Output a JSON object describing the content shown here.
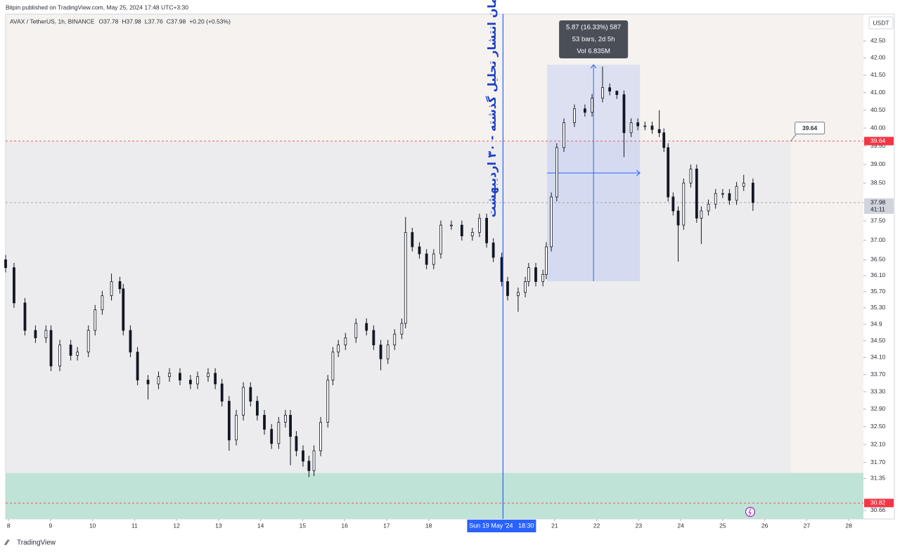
{
  "header": {
    "publisher": "Bitpin published on TradingView.com, May 25, 2024 17:48 UTC+3:30",
    "symbol": "AVAX / TetherUS, 1h, BINANCE",
    "ohlc": [
      "O37.78",
      "H37.98",
      "L37.76",
      "C37.98"
    ],
    "change": "+0.20 (+0.53%)",
    "logo": "TradingView"
  },
  "chart_data": {
    "type": "candlestick",
    "currency": "USDT",
    "annotation": "زمان انتشار تحلیل گذشته - ۳۰ اردیبهشت",
    "log_scale": true,
    "grid": false,
    "up_color": "#ffffff",
    "down_color": "#131722",
    "wick_color": "#131722",
    "x": [
      7.93,
      8.13,
      8.39,
      8.64,
      8.89,
      9.01,
      9.22,
      9.48,
      9.64,
      9.9,
      10.06,
      10.23,
      10.45,
      10.65,
      10.73,
      10.9,
      11.07,
      11.32,
      11.57,
      11.83,
      12.08,
      12.33,
      12.5,
      12.75,
      12.92,
      13.08,
      13.25,
      13.42,
      13.59,
      13.76,
      13.92,
      14.09,
      14.26,
      14.43,
      14.59,
      14.71,
      14.85,
      15.01,
      15.15,
      15.27,
      15.43,
      15.6,
      15.72,
      15.85,
      16.02,
      16.27,
      16.52,
      16.69,
      16.86,
      17.03,
      17.19,
      17.36,
      17.45,
      17.61,
      17.78,
      17.95,
      18.12,
      18.29,
      18.54,
      18.79,
      19.04,
      19.21,
      19.38,
      19.54,
      19.74,
      19.88,
      20.13,
      20.3,
      20.38,
      20.55,
      20.72,
      20.8,
      20.92,
      21.05,
      21.22,
      21.47,
      21.72,
      21.89,
      22.14,
      22.31,
      22.48,
      22.65,
      22.82,
      22.98,
      23.15,
      23.32,
      23.49,
      23.6,
      23.7,
      23.82,
      23.94,
      24.07,
      24.24,
      24.38,
      24.49,
      24.66,
      24.83,
      25.0,
      25.16,
      25.33,
      25.5,
      25.72
    ],
    "open": [
      36.5,
      36.3,
      35.42,
      34.75,
      34.57,
      34.75,
      33.9,
      34.4,
      34.15,
      34.23,
      34.75,
      35.25,
      35.6,
      35.95,
      35.77,
      34.75,
      34.23,
      33.57,
      33.48,
      33.65,
      33.73,
      33.57,
      33.48,
      33.65,
      33.73,
      33.48,
      33.08,
      32.2,
      32.76,
      33.4,
      33.08,
      32.76,
      32.44,
      32.12,
      32.6,
      32.76,
      32.28,
      31.96,
      31.73,
      31.52,
      31.96,
      32.6,
      33.57,
      34.23,
      34.4,
      34.57,
      34.92,
      34.75,
      34.4,
      34.07,
      34.4,
      34.66,
      34.92,
      37.2,
      36.83,
      36.65,
      36.38,
      36.65,
      37.39,
      37.39,
      37.11,
      37.2,
      37.57,
      36.93,
      36.56,
      35.95,
      35.6,
      35.68,
      35.95,
      36.3,
      35.95,
      36.13,
      36.83,
      38.13,
      39.46,
      40.15,
      40.54,
      40.44,
      40.84,
      41.14,
      41.04,
      40.94,
      39.87,
      40.15,
      40.06,
      40.06,
      39.96,
      39.87,
      39.46,
      38.13,
      37.76,
      37.39,
      38.5,
      38.88,
      37.57,
      37.76,
      37.94,
      38.22,
      38.22,
      38.04,
      38.41,
      38.5
    ],
    "high": [
      36.62,
      36.42,
      35.54,
      34.87,
      34.87,
      34.87,
      34.52,
      34.52,
      34.35,
      34.87,
      35.37,
      35.72,
      36.15,
      36.07,
      35.89,
      34.87,
      34.35,
      33.69,
      33.77,
      33.85,
      33.85,
      33.69,
      33.77,
      33.85,
      33.85,
      33.6,
      33.2,
      32.88,
      33.52,
      33.52,
      33.2,
      32.88,
      32.56,
      32.72,
      32.88,
      32.88,
      32.4,
      32.08,
      31.85,
      32.08,
      32.72,
      33.69,
      34.35,
      34.52,
      34.69,
      35.04,
      35.04,
      34.87,
      34.52,
      34.52,
      34.78,
      35.04,
      37.6,
      37.32,
      36.95,
      36.77,
      36.77,
      37.51,
      37.51,
      37.51,
      37.32,
      37.69,
      37.69,
      37.05,
      36.68,
      36.07,
      35.8,
      36.07,
      36.42,
      36.42,
      36.25,
      36.95,
      38.25,
      39.58,
      40.27,
      40.66,
      40.66,
      40.96,
      41.75,
      41.26,
      41.06,
      41.06,
      40.27,
      40.27,
      40.18,
      40.18,
      40.5,
      39.99,
      39.58,
      38.25,
      37.88,
      38.62,
      39.0,
      39.0,
      37.88,
      38.06,
      38.34,
      38.34,
      38.34,
      38.53,
      38.72,
      38.62
    ],
    "low": [
      36.18,
      35.3,
      34.63,
      34.45,
      34.45,
      33.78,
      33.78,
      34.03,
      34.03,
      34.11,
      34.63,
      35.13,
      35.48,
      35.65,
      34.63,
      34.11,
      33.45,
      33.12,
      33.36,
      33.53,
      33.45,
      33.36,
      33.36,
      33.53,
      33.36,
      32.96,
      31.96,
      32.08,
      32.64,
      32.96,
      32.64,
      32.32,
      32.0,
      32.0,
      32.48,
      31.64,
      31.84,
      31.61,
      31.38,
      31.4,
      31.84,
      32.48,
      33.45,
      34.11,
      34.28,
      34.45,
      34.63,
      34.28,
      33.8,
      33.95,
      34.28,
      34.54,
      34.8,
      36.71,
      36.53,
      36.26,
      36.26,
      36.53,
      37.27,
      36.99,
      36.99,
      37.08,
      36.81,
      36.44,
      35.83,
      35.48,
      35.2,
      35.56,
      35.83,
      35.83,
      35.83,
      36.01,
      36.71,
      38.01,
      39.34,
      40.03,
      40.32,
      40.32,
      40.72,
      40.92,
      40.82,
      39.2,
      39.75,
      39.94,
      39.94,
      39.84,
      39.75,
      39.34,
      38.01,
      37.64,
      36.45,
      37.27,
      38.38,
      37.45,
      36.9,
      37.64,
      37.82,
      38.1,
      37.92,
      37.92,
      38.29,
      37.76
    ],
    "close": [
      36.3,
      35.42,
      34.75,
      34.57,
      34.75,
      33.9,
      34.4,
      34.15,
      34.23,
      34.75,
      35.25,
      35.6,
      35.95,
      35.77,
      34.75,
      34.23,
      33.57,
      33.48,
      33.65,
      33.73,
      33.57,
      33.48,
      33.65,
      33.73,
      33.48,
      33.08,
      32.2,
      32.76,
      33.4,
      33.08,
      32.76,
      32.44,
      32.12,
      32.6,
      32.76,
      32.28,
      31.96,
      31.73,
      31.52,
      31.96,
      32.6,
      33.57,
      34.23,
      34.4,
      34.57,
      34.92,
      34.75,
      34.4,
      34.07,
      34.4,
      34.66,
      34.92,
      37.2,
      36.83,
      36.65,
      36.38,
      36.65,
      37.39,
      37.39,
      37.11,
      37.2,
      37.57,
      36.93,
      36.56,
      35.95,
      35.6,
      35.68,
      35.95,
      36.3,
      35.95,
      36.13,
      36.83,
      38.13,
      39.46,
      40.15,
      40.54,
      40.44,
      40.84,
      41.14,
      41.04,
      40.94,
      39.87,
      40.15,
      40.06,
      40.06,
      39.96,
      39.87,
      39.46,
      38.13,
      37.76,
      37.39,
      38.5,
      38.88,
      37.57,
      37.76,
      37.94,
      38.22,
      38.22,
      38.04,
      38.41,
      38.5,
      37.98
    ],
    "xlim": [
      7.93,
      28.35
    ],
    "xticks": [
      8,
      9,
      10,
      11,
      12,
      13,
      14,
      15,
      16,
      17,
      18,
      21,
      22,
      23,
      24,
      25,
      26,
      27,
      28
    ],
    "ylim": [
      30.48,
      43.3
    ],
    "yticks": [
      {
        "value": 42.5,
        "label": "42.50"
      },
      {
        "value": 42,
        "label": "42.00"
      },
      {
        "value": 41.5,
        "label": "41.50"
      },
      {
        "value": 41,
        "label": "41.00"
      },
      {
        "value": 40.5,
        "label": "40.50"
      },
      {
        "value": 40,
        "label": "40.00"
      },
      {
        "value": 39.5,
        "label": "39.50"
      },
      {
        "value": 39,
        "label": "39.00"
      },
      {
        "value": 38.5,
        "label": "38.50"
      },
      {
        "value": 37.5,
        "label": "37.50"
      },
      {
        "value": 37,
        "label": "37.00"
      },
      {
        "value": 36.5,
        "label": "36.50"
      },
      {
        "value": 36.1,
        "label": "36.10"
      },
      {
        "value": 35.7,
        "label": "35.70"
      },
      {
        "value": 35.3,
        "label": "35.30"
      },
      34.9,
      {
        "value": 34.5,
        "label": "34.50"
      },
      {
        "value": 34.1,
        "label": "34.10"
      },
      {
        "value": 33.7,
        "label": "33.70"
      },
      {
        "value": 33.3,
        "label": "33.30"
      },
      {
        "value": 32.9,
        "label": "32.90"
      },
      {
        "value": 32.5,
        "label": "32.50"
      },
      {
        "value": 32.1,
        "label": "32.10"
      },
      {
        "value": 31.7,
        "label": "31.70"
      },
      31.35,
      30.66
    ],
    "crosshair": {
      "x": 19.77,
      "label": "Sun 19 May '24   18:30",
      "color": "#2962ff"
    },
    "price_lines": [
      {
        "value": 39.64,
        "color": "#f23645"
      },
      {
        "value": 37.98,
        "color": "#9598a1",
        "countdown": "41:11"
      },
      {
        "value": 30.82,
        "color": "#f23645"
      }
    ],
    "zone": {
      "top": 31.47,
      "color": "#bfe3d7"
    },
    "shade_right": 26.62,
    "measure": {
      "x": [
        20.82,
        23.03
      ],
      "y": [
        35.96,
        41.8
      ],
      "lines": [
        "5.87 (16.33%) 587",
        "53 bars, 2d 5h",
        "Vol 6.835M"
      ]
    }
  }
}
